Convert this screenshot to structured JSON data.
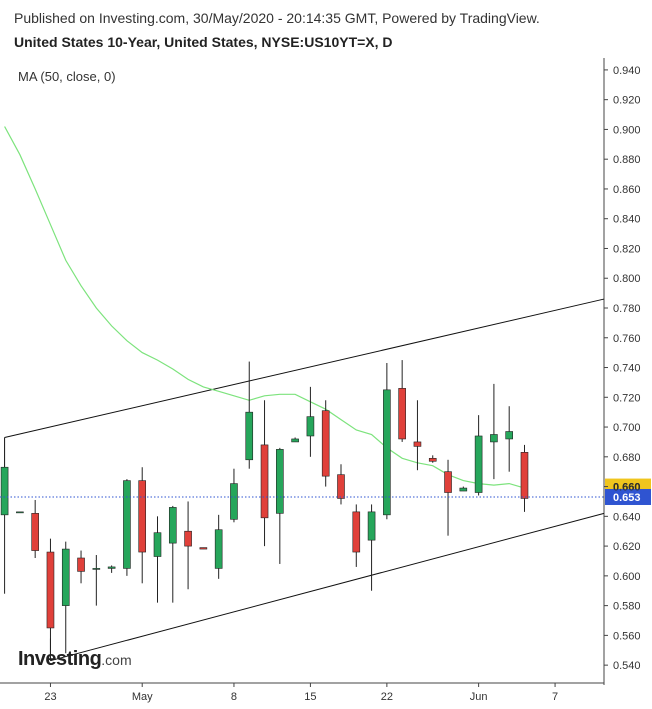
{
  "header": {
    "published": "Published on Investing.com, 30/May/2020 - 20:14:35 GMT, Powered by TradingView.",
    "title": "United States 10-Year, United States, NYSE:US10YT=X, D"
  },
  "indicator": {
    "label": "MA (50, close, 0)"
  },
  "logo": {
    "main": "Investing",
    "suffix": ".com"
  },
  "colors": {
    "up": "#26a65b",
    "down": "#e0403a",
    "ma": "#7de37d",
    "current": "#2f54d1",
    "ma_tag": "#f0c51d"
  },
  "chart_data": {
    "type": "candlestick",
    "ylim": [
      0.528,
      0.948
    ],
    "y_ticks": [
      "0.940",
      "0.920",
      "0.900",
      "0.880",
      "0.860",
      "0.840",
      "0.820",
      "0.800",
      "0.780",
      "0.760",
      "0.740",
      "0.720",
      "0.700",
      "0.680",
      "0.660",
      "0.640",
      "0.620",
      "0.600",
      "0.580",
      "0.560",
      "0.540"
    ],
    "x_ticks": [
      {
        "label": "23",
        "i": 3
      },
      {
        "label": "May",
        "i": 9
      },
      {
        "label": "8",
        "i": 15
      },
      {
        "label": "15",
        "i": 20
      },
      {
        "label": "22",
        "i": 25
      },
      {
        "label": "Jun",
        "i": 31
      },
      {
        "label": "7",
        "i": 36
      }
    ],
    "i_range": [
      -0.3,
      39.2
    ],
    "candles": [
      {
        "i": 0,
        "o": 0.641,
        "h": 0.673,
        "l": 0.588,
        "c": 0.673
      },
      {
        "i": 1,
        "o": 0.643,
        "h": 0.643,
        "l": 0.643,
        "c": 0.643
      },
      {
        "i": 2,
        "o": 0.642,
        "h": 0.651,
        "l": 0.612,
        "c": 0.617
      },
      {
        "i": 3,
        "o": 0.616,
        "h": 0.625,
        "l": 0.543,
        "c": 0.565
      },
      {
        "i": 4,
        "o": 0.58,
        "h": 0.623,
        "l": 0.548,
        "c": 0.618
      },
      {
        "i": 5,
        "o": 0.612,
        "h": 0.617,
        "l": 0.595,
        "c": 0.603
      },
      {
        "i": 6,
        "o": 0.605,
        "h": 0.614,
        "l": 0.58,
        "c": 0.605
      },
      {
        "i": 7,
        "o": 0.605,
        "h": 0.607,
        "l": 0.602,
        "c": 0.606
      },
      {
        "i": 8,
        "o": 0.605,
        "h": 0.665,
        "l": 0.6,
        "c": 0.664
      },
      {
        "i": 9,
        "o": 0.664,
        "h": 0.673,
        "l": 0.595,
        "c": 0.616
      },
      {
        "i": 10,
        "o": 0.613,
        "h": 0.64,
        "l": 0.582,
        "c": 0.629
      },
      {
        "i": 11,
        "o": 0.622,
        "h": 0.647,
        "l": 0.582,
        "c": 0.646
      },
      {
        "i": 12,
        "o": 0.63,
        "h": 0.65,
        "l": 0.591,
        "c": 0.62
      },
      {
        "i": 13,
        "o": 0.619,
        "h": 0.619,
        "l": 0.618,
        "c": 0.618
      },
      {
        "i": 14,
        "o": 0.605,
        "h": 0.641,
        "l": 0.598,
        "c": 0.631
      },
      {
        "i": 15,
        "o": 0.638,
        "h": 0.672,
        "l": 0.636,
        "c": 0.662
      },
      {
        "i": 16,
        "o": 0.678,
        "h": 0.744,
        "l": 0.672,
        "c": 0.71
      },
      {
        "i": 17,
        "o": 0.688,
        "h": 0.718,
        "l": 0.62,
        "c": 0.639
      },
      {
        "i": 18,
        "o": 0.642,
        "h": 0.686,
        "l": 0.608,
        "c": 0.685
      },
      {
        "i": 19,
        "o": 0.69,
        "h": 0.693,
        "l": 0.69,
        "c": 0.692
      },
      {
        "i": 20,
        "o": 0.694,
        "h": 0.727,
        "l": 0.68,
        "c": 0.707
      },
      {
        "i": 21,
        "o": 0.711,
        "h": 0.718,
        "l": 0.66,
        "c": 0.667
      },
      {
        "i": 22,
        "o": 0.668,
        "h": 0.675,
        "l": 0.648,
        "c": 0.652
      },
      {
        "i": 23,
        "o": 0.643,
        "h": 0.648,
        "l": 0.606,
        "c": 0.616
      },
      {
        "i": 24,
        "o": 0.624,
        "h": 0.648,
        "l": 0.59,
        "c": 0.643
      },
      {
        "i": 25,
        "o": 0.641,
        "h": 0.743,
        "l": 0.638,
        "c": 0.725
      },
      {
        "i": 26,
        "o": 0.726,
        "h": 0.745,
        "l": 0.69,
        "c": 0.692
      },
      {
        "i": 27,
        "o": 0.69,
        "h": 0.718,
        "l": 0.671,
        "c": 0.687
      },
      {
        "i": 28,
        "o": 0.679,
        "h": 0.681,
        "l": 0.676,
        "c": 0.677
      },
      {
        "i": 29,
        "o": 0.67,
        "h": 0.678,
        "l": 0.627,
        "c": 0.656
      },
      {
        "i": 30,
        "o": 0.657,
        "h": 0.66,
        "l": 0.657,
        "c": 0.659
      },
      {
        "i": 31,
        "o": 0.656,
        "h": 0.708,
        "l": 0.654,
        "c": 0.694
      },
      {
        "i": 32,
        "o": 0.69,
        "h": 0.729,
        "l": 0.665,
        "c": 0.695
      },
      {
        "i": 33,
        "o": 0.692,
        "h": 0.714,
        "l": 0.67,
        "c": 0.697
      },
      {
        "i": 34,
        "o": 0.683,
        "h": 0.688,
        "l": 0.643,
        "c": 0.652
      }
    ],
    "ma50": [
      {
        "i": 0,
        "v": 0.902
      },
      {
        "i": 1,
        "v": 0.883
      },
      {
        "i": 2,
        "v": 0.86
      },
      {
        "i": 3,
        "v": 0.836
      },
      {
        "i": 4,
        "v": 0.812
      },
      {
        "i": 5,
        "v": 0.795
      },
      {
        "i": 6,
        "v": 0.78
      },
      {
        "i": 7,
        "v": 0.768
      },
      {
        "i": 8,
        "v": 0.758
      },
      {
        "i": 9,
        "v": 0.75
      },
      {
        "i": 10,
        "v": 0.745
      },
      {
        "i": 11,
        "v": 0.739
      },
      {
        "i": 12,
        "v": 0.732
      },
      {
        "i": 13,
        "v": 0.727
      },
      {
        "i": 14,
        "v": 0.724
      },
      {
        "i": 15,
        "v": 0.721
      },
      {
        "i": 16,
        "v": 0.718
      },
      {
        "i": 17,
        "v": 0.721
      },
      {
        "i": 18,
        "v": 0.722
      },
      {
        "i": 19,
        "v": 0.722
      },
      {
        "i": 20,
        "v": 0.717
      },
      {
        "i": 21,
        "v": 0.712
      },
      {
        "i": 22,
        "v": 0.705
      },
      {
        "i": 23,
        "v": 0.698
      },
      {
        "i": 24,
        "v": 0.695
      },
      {
        "i": 25,
        "v": 0.686
      },
      {
        "i": 26,
        "v": 0.679
      },
      {
        "i": 27,
        "v": 0.676
      },
      {
        "i": 28,
        "v": 0.674
      },
      {
        "i": 29,
        "v": 0.668
      },
      {
        "i": 30,
        "v": 0.664
      },
      {
        "i": 31,
        "v": 0.662
      },
      {
        "i": 32,
        "v": 0.661
      },
      {
        "i": 33,
        "v": 0.662
      },
      {
        "i": 34,
        "v": 0.659
      }
    ],
    "channel": {
      "upper": [
        {
          "i": 0,
          "v": 0.693
        },
        {
          "i": 39.2,
          "v": 0.786
        }
      ],
      "lower": [
        {
          "i": 3,
          "v": 0.543
        },
        {
          "i": 39.2,
          "v": 0.642
        }
      ],
      "left_edge": [
        {
          "i": 0,
          "v": 0.693
        },
        {
          "i": 0,
          "v": 0.641
        }
      ],
      "lower_stub": [
        {
          "i": 3,
          "v": 0.543
        },
        {
          "i": 3,
          "v": 0.558
        }
      ]
    },
    "current_value": 0.653,
    "ma_value": 0.66,
    "current_label": "0.653",
    "ma_label": "0.660"
  }
}
